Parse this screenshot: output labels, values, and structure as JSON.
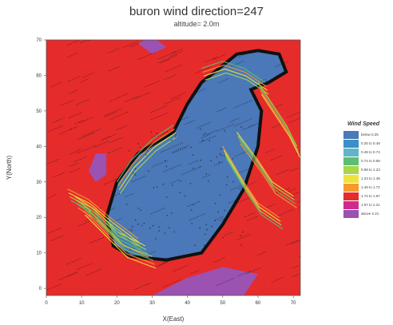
{
  "chart_data": {
    "type": "heatmap",
    "title": "buron wind direction=247",
    "subtitle": "altitude= 2.0m",
    "xlabel": "X(East)",
    "ylabel": "Y(North)",
    "xlim": [
      0,
      72
    ],
    "ylim": [
      -2,
      70
    ],
    "xticks": [
      "0",
      "10",
      "20",
      "30",
      "40",
      "50",
      "60",
      "70"
    ],
    "yticks": [
      "0",
      "10",
      "20",
      "30",
      "40",
      "50",
      "60",
      "70"
    ],
    "legend": {
      "title": "Wind Speed",
      "position": "right",
      "entries": [
        {
          "label": "below 0.25",
          "color": "#4a78b8"
        },
        {
          "label": "0.25 to 0.49",
          "color": "#3c8ec8"
        },
        {
          "label": "0.49 to 0.74",
          "color": "#5fb6c6"
        },
        {
          "label": "0.74 to 0.98",
          "color": "#5dbd73"
        },
        {
          "label": "0.98 to 1.23",
          "color": "#a7d64a"
        },
        {
          "label": "1.23 to 1.48",
          "color": "#f0e23e"
        },
        {
          "label": "1.48 to 1.72",
          "color": "#f59a2e"
        },
        {
          "label": "1.72 to 1.97",
          "color": "#e62b2b"
        },
        {
          "label": "1.97 to 2.21",
          "color": "#d02b8c"
        },
        {
          "label": "above 2.21",
          "color": "#9b52b0"
        }
      ]
    },
    "regions": [
      {
        "speed_class": "below 0.25",
        "points": [
          [
            17,
            20
          ],
          [
            20,
            30
          ],
          [
            26,
            38
          ],
          [
            36,
            44
          ],
          [
            40,
            52
          ],
          [
            44,
            58
          ],
          [
            49,
            62
          ],
          [
            54,
            66
          ],
          [
            60,
            67
          ],
          [
            66,
            66
          ],
          [
            68,
            61
          ],
          [
            63,
            58
          ],
          [
            58,
            56
          ],
          [
            61,
            50
          ],
          [
            60,
            40
          ],
          [
            56,
            28
          ],
          [
            50,
            18
          ],
          [
            44,
            10
          ],
          [
            34,
            8
          ],
          [
            24,
            9
          ],
          [
            19,
            12
          ]
        ]
      },
      {
        "speed_class": "above 2.21",
        "points": [
          [
            12,
            33
          ],
          [
            14,
            30
          ],
          [
            17,
            32
          ],
          [
            17,
            38
          ],
          [
            14,
            38
          ]
        ]
      },
      {
        "speed_class": "above 2.21",
        "points": [
          [
            26,
            69
          ],
          [
            30,
            71
          ],
          [
            34,
            68
          ],
          [
            30,
            66
          ]
        ]
      },
      {
        "speed_class": "above 2.21",
        "points": [
          [
            30,
            -2
          ],
          [
            56,
            -2
          ],
          [
            60,
            4
          ],
          [
            50,
            6
          ],
          [
            40,
            3
          ]
        ]
      }
    ],
    "grid": false
  }
}
